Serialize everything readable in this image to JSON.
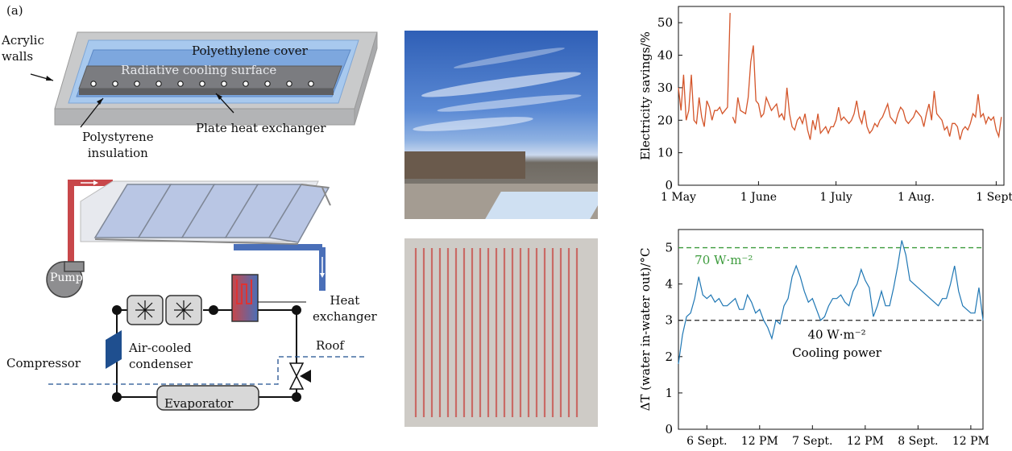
{
  "panel_label": "(a)",
  "device": {
    "acrylic": "Acrylic\nwalls",
    "cover": "Polyethylene cover",
    "surface": "Radiative cooling surface",
    "insulation": "Polystyrene\ninsulation",
    "hx": "Plate heat exchanger"
  },
  "system": {
    "pump": "Pump",
    "heat_exchanger": "Heat\nexchanger",
    "roof": "Roof",
    "compressor": "Compressor",
    "condenser": "Air-cooled\ncondenser",
    "evaporator": "Evaporator"
  },
  "colors": {
    "hot_pipe": "#c8474a",
    "cold_pipe": "#4a6fb8",
    "savings_line": "#d4552a",
    "dt_line": "#1f77b4",
    "ref70": "#3c9b3c",
    "ref40": "#222222"
  },
  "chart_data": [
    {
      "type": "line",
      "ylabel": "Electricity savings/%",
      "xlabel": "",
      "ylim": [
        0,
        55
      ],
      "yticks": [
        0,
        10,
        20,
        30,
        40,
        50
      ],
      "xticks": [
        "1 May",
        "1 June",
        "1 July",
        "1 Aug.",
        "1 Sept."
      ],
      "xlim": [
        0,
        126
      ],
      "series": [
        {
          "x": [
            0,
            1,
            2,
            3,
            4,
            5,
            6,
            7,
            8,
            9,
            10,
            11,
            12,
            13,
            14,
            15,
            16,
            17,
            18,
            19,
            20,
            21,
            22,
            23,
            24,
            26,
            27,
            28,
            29,
            30,
            31,
            32,
            33,
            34,
            35,
            36,
            37,
            38,
            39,
            40,
            41,
            42,
            43,
            44,
            45,
            46,
            47,
            48,
            49,
            50,
            51,
            52,
            53,
            54,
            55,
            56,
            57,
            58,
            59,
            60,
            61,
            62,
            63,
            64,
            65,
            66,
            67,
            68,
            69,
            70,
            71,
            72,
            73,
            74,
            75,
            76,
            77,
            78,
            79,
            80,
            81,
            82,
            83,
            84,
            85,
            86,
            87,
            88,
            89,
            90,
            91,
            92,
            93,
            94,
            95,
            96,
            97,
            98,
            99,
            100,
            101,
            102,
            103,
            104,
            105,
            106,
            107,
            108,
            109,
            110,
            111,
            112,
            113,
            114,
            115,
            116,
            117,
            118,
            119,
            120,
            121,
            122,
            123,
            124,
            125
          ],
          "y": [
            30,
            23,
            34,
            20,
            23,
            34,
            20,
            19,
            27,
            21,
            18,
            26,
            24,
            20,
            23,
            23,
            24,
            22,
            23,
            24,
            53,
            21,
            19,
            27,
            23,
            22,
            27,
            38,
            43,
            26,
            25,
            21,
            22,
            27,
            25,
            23,
            24,
            25,
            21,
            22,
            20,
            30,
            22,
            18,
            17,
            20,
            21,
            19,
            22,
            17,
            14,
            20,
            17,
            22,
            16,
            17,
            18,
            16,
            18,
            18,
            20,
            24,
            20,
            21,
            20,
            19,
            20,
            22,
            26,
            21,
            19,
            23,
            18,
            16,
            17,
            19,
            18,
            20,
            21,
            23,
            25,
            21,
            20,
            19,
            22,
            24,
            23,
            20,
            19,
            20,
            21,
            23,
            22,
            21,
            18,
            22,
            25,
            20,
            29,
            22,
            21,
            20,
            17,
            18,
            15,
            19,
            19,
            18,
            14,
            17,
            18,
            17,
            19,
            22,
            21,
            28,
            21,
            22,
            19,
            21,
            20,
            21,
            17,
            15,
            21
          ]
        }
      ]
    },
    {
      "type": "line",
      "ylabel": "ΔT (water in-water out)/°C",
      "xlabel": "",
      "ylim": [
        0,
        5.5
      ],
      "yticks": [
        0,
        1,
        2,
        3,
        4,
        5
      ],
      "xticks": [
        "6 Sept.",
        "12 PM",
        "7 Sept.",
        "12 PM",
        "8 Sept.",
        "12 PM"
      ],
      "xlim": [
        0,
        75
      ],
      "annotations": [
        "70 W·m⁻²",
        "40 W·m⁻²",
        "Cooling power"
      ],
      "reference_lines": [
        5.0,
        3.0
      ],
      "series": [
        {
          "x": [
            0,
            1,
            2,
            3,
            4,
            5,
            6,
            7,
            8,
            9,
            10,
            11,
            12,
            13,
            14,
            15,
            16,
            17,
            18,
            19,
            20,
            21,
            22,
            23,
            24,
            25,
            26,
            27,
            28,
            29,
            30,
            31,
            32,
            33,
            34,
            35,
            36,
            37,
            38,
            39,
            40,
            41,
            42,
            43,
            44,
            45,
            46,
            47,
            48,
            49,
            50,
            51,
            52,
            53,
            54,
            55,
            56,
            57,
            58,
            59,
            60,
            61,
            62,
            63,
            64,
            65,
            66,
            67,
            68,
            69,
            70,
            71,
            72,
            73,
            74,
            75
          ],
          "y": [
            1.8,
            2.6,
            3.1,
            3.2,
            3.6,
            4.2,
            3.7,
            3.6,
            3.7,
            3.5,
            3.6,
            3.4,
            3.4,
            3.5,
            3.6,
            3.3,
            3.3,
            3.7,
            3.5,
            3.2,
            3.3,
            3.0,
            2.8,
            2.5,
            3.0,
            2.9,
            3.4,
            3.6,
            4.2,
            4.5,
            4.2,
            3.8,
            3.5,
            3.6,
            3.3,
            3.0,
            3.1,
            3.4,
            3.6,
            3.6,
            3.7,
            3.5,
            3.4,
            3.8,
            4.0,
            4.4,
            4.1,
            3.9,
            3.1,
            3.4,
            3.8,
            3.4,
            3.4,
            3.9,
            4.5,
            5.2,
            4.8,
            4.1,
            4.0,
            3.9,
            3.8,
            3.7,
            3.6,
            3.5,
            3.4,
            3.6,
            3.6,
            4.0,
            4.5,
            3.8,
            3.4,
            3.3,
            3.2,
            3.2,
            3.9,
            3.0
          ]
        }
      ]
    }
  ]
}
